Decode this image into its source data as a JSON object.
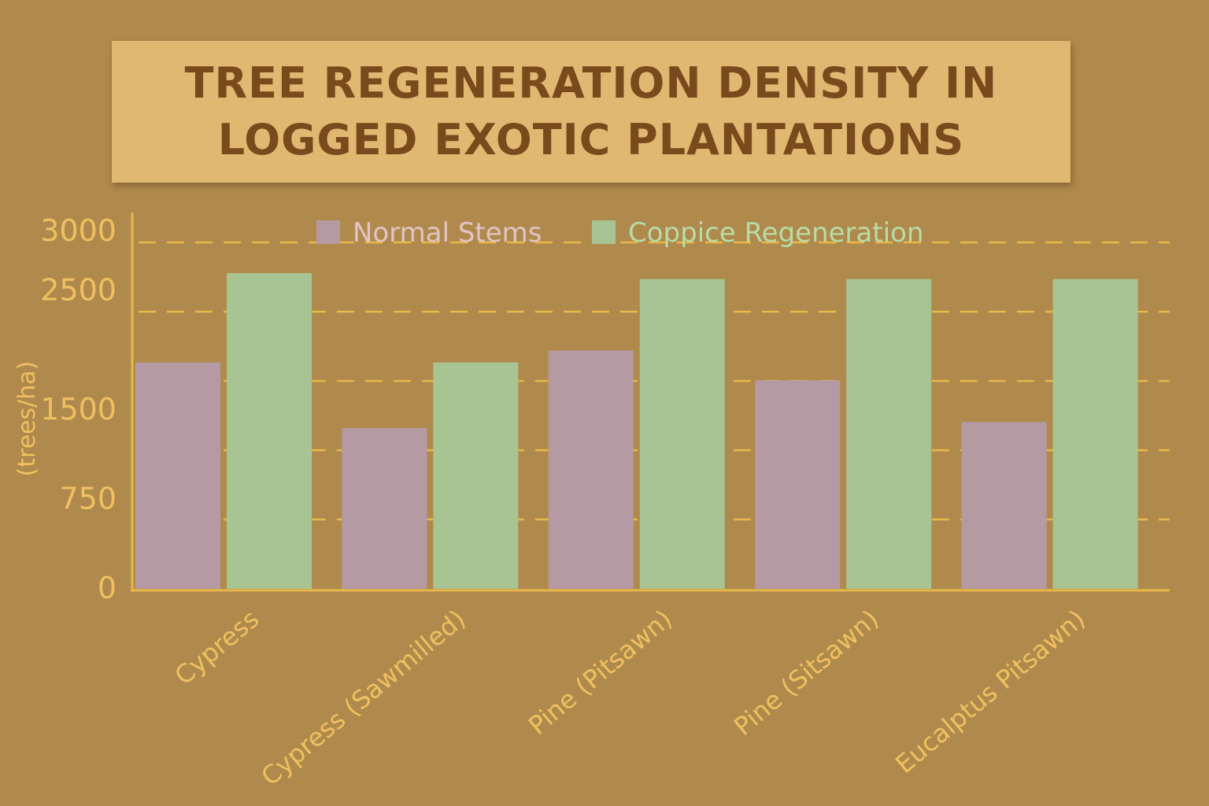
{
  "chart_data": {
    "type": "bar",
    "title_lines": [
      "TREE REGENERATION DENSITY IN",
      "LOGGED EXOTIC PLANTATIONS"
    ],
    "ylabel": "(trees/ha)",
    "xlabel": "",
    "y_ticks": [
      {
        "label": "0",
        "value": 0
      },
      {
        "label": "750",
        "value": 750
      },
      {
        "label": "1500",
        "value": 1500
      },
      {
        "label": "2500",
        "value": 2500
      },
      {
        "label": "3000",
        "value": 3000
      }
    ],
    "ylim": [
      0,
      3000
    ],
    "grid": "dashed horizontal",
    "legend_position": "top",
    "categories": [
      "Cypress",
      "Cypress (Sawmilled)",
      "Pine (Pitsawn)",
      "Pine (Sitsawn)",
      "Eucalptus Pitsawn)"
    ],
    "series": [
      {
        "name": "Normal Stems",
        "color": "#b59aa3",
        "values": [
          1900,
          1350,
          2000,
          1750,
          1400
        ]
      },
      {
        "name": "Coppice Regeneration",
        "color": "#a8c493",
        "values": [
          2650,
          1900,
          2600,
          2600,
          2600
        ]
      }
    ]
  },
  "colors": {
    "background": "#b08a4c",
    "title_card": "#e0b872",
    "title_text": "#7a4a1c",
    "axis": "#e8b84a",
    "tick_text": "#f0c060",
    "normal_legend_text": "#e0c4c8",
    "coppice_legend_text": "#b8dca8"
  }
}
